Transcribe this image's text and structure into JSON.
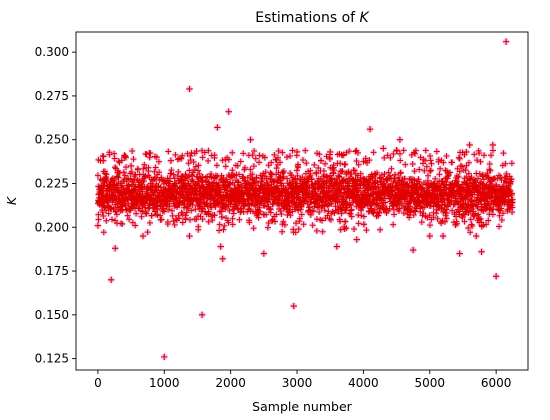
{
  "chart_data": {
    "type": "scatter",
    "title_prefix": "Estimations of ",
    "title_var": "K",
    "xlabel": "Sample number",
    "ylabel": "K",
    "xlim": [
      -330,
      6480
    ],
    "ylim": [
      0.1185,
      0.3115
    ],
    "xticks": [
      0,
      1000,
      2000,
      3000,
      4000,
      5000,
      6000
    ],
    "xtick_labels": [
      "0",
      "1000",
      "2000",
      "3000",
      "4000",
      "5000",
      "6000"
    ],
    "yticks": [
      0.125,
      0.15,
      0.175,
      0.2,
      0.225,
      0.25,
      0.275,
      0.3
    ],
    "ytick_labels": [
      "0.125",
      "0.150",
      "0.175",
      "0.200",
      "0.225",
      "0.250",
      "0.275",
      "0.300"
    ],
    "grid": false,
    "series": [
      {
        "marker": "+",
        "color": "#e00000",
        "halo_color": "#f3c6ee",
        "n_samples": 6250,
        "central_band": [
          0.205,
          0.235
        ],
        "center": 0.219,
        "points": [
          [
            0,
            0.201
          ],
          [
            80,
            0.238
          ],
          [
            200,
            0.17
          ],
          [
            260,
            0.188
          ],
          [
            400,
            0.241
          ],
          [
            500,
            0.235
          ],
          [
            680,
            0.195
          ],
          [
            780,
            0.24
          ],
          [
            1000,
            0.126
          ],
          [
            1100,
            0.238
          ],
          [
            1380,
            0.279
          ],
          [
            1380,
            0.195
          ],
          [
            1570,
            0.15
          ],
          [
            1800,
            0.257
          ],
          [
            1850,
            0.189
          ],
          [
            1880,
            0.182
          ],
          [
            1970,
            0.266
          ],
          [
            2300,
            0.25
          ],
          [
            2500,
            0.185
          ],
          [
            2950,
            0.155
          ],
          [
            3000,
            0.243
          ],
          [
            3500,
            0.243
          ],
          [
            3600,
            0.189
          ],
          [
            3900,
            0.193
          ],
          [
            4100,
            0.256
          ],
          [
            4300,
            0.245
          ],
          [
            4500,
            0.244
          ],
          [
            4550,
            0.25
          ],
          [
            4750,
            0.187
          ],
          [
            5000,
            0.195
          ],
          [
            5200,
            0.195
          ],
          [
            5450,
            0.185
          ],
          [
            5550,
            0.243
          ],
          [
            5600,
            0.247
          ],
          [
            5700,
            0.195
          ],
          [
            5780,
            0.186
          ],
          [
            5950,
            0.247
          ],
          [
            6000,
            0.172
          ],
          [
            6150,
            0.306
          ]
        ]
      }
    ]
  }
}
